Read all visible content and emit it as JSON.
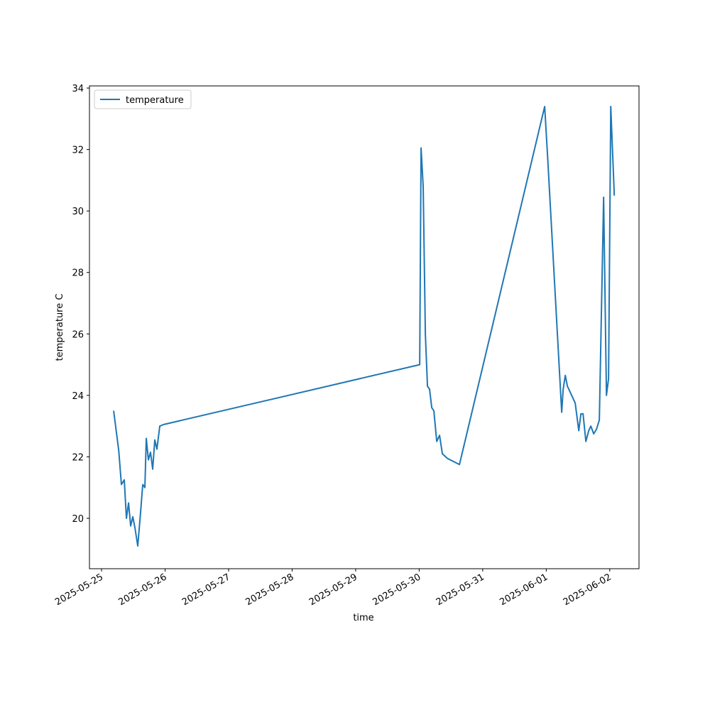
{
  "chart_data": {
    "type": "line",
    "x_label": "time",
    "y_label": "temperature C",
    "x": [
      "2025-05-25 04:34",
      "2025-05-25 06:30",
      "2025-05-25 07:30",
      "2025-05-25 08:35",
      "2025-05-25 09:24",
      "2025-05-25 10:12",
      "2025-05-25 11:00",
      "2025-05-25 11:48",
      "2025-05-25 12:36",
      "2025-05-25 13:41",
      "2025-05-25 14:45",
      "2025-05-25 15:34",
      "2025-05-25 16:22",
      "2025-05-25 16:54",
      "2025-05-25 17:42",
      "2025-05-25 18:30",
      "2025-05-25 19:19",
      "2025-05-25 20:07",
      "2025-05-25 20:55",
      "2025-05-25 22:00",
      "2025-05-25 23:21",
      "2025-05-30 00:12",
      "2025-05-30 00:43",
      "2025-05-30 01:31",
      "2025-05-30 02:20",
      "2025-05-30 03:08",
      "2025-05-30 03:56",
      "2025-05-30 04:45",
      "2025-05-30 05:33",
      "2025-05-30 06:38",
      "2025-05-30 07:42",
      "2025-05-30 08:46",
      "2025-05-30 10:39",
      "2025-05-30 15:13",
      "2025-05-31 23:25",
      "2025-06-01 00:30",
      "2025-06-01 05:51",
      "2025-06-01 06:24",
      "2025-06-01 07:12",
      "2025-06-01 08:00",
      "2025-06-01 10:57",
      "2025-06-01 12:18",
      "2025-06-01 13:06",
      "2025-06-01 13:55",
      "2025-06-01 14:59",
      "2025-06-01 16:03",
      "2025-06-01 16:51",
      "2025-06-01 17:56",
      "2025-06-01 19:00",
      "2025-06-01 20:04",
      "2025-06-01 21:41",
      "2025-06-01 22:45",
      "2025-06-01 23:33",
      "2025-06-02 00:23",
      "2025-06-02 01:43"
    ],
    "series": [
      {
        "name": "temperature",
        "color": "#1f77b4",
        "values": [
          23.5,
          22.2,
          21.1,
          21.25,
          20.0,
          20.5,
          19.75,
          20.05,
          19.7,
          19.1,
          20.2,
          21.1,
          21.0,
          22.6,
          21.9,
          22.15,
          21.6,
          22.55,
          22.25,
          23.0,
          23.05,
          25.0,
          32.05,
          30.8,
          26.0,
          24.3,
          24.2,
          23.6,
          23.5,
          22.5,
          22.7,
          22.1,
          21.95,
          21.75,
          33.4,
          31.8,
          23.45,
          24.2,
          24.65,
          24.3,
          23.75,
          22.85,
          23.4,
          23.4,
          22.5,
          22.85,
          23.0,
          22.75,
          22.9,
          23.2,
          30.45,
          24.0,
          24.55,
          33.4,
          30.5
        ]
      }
    ],
    "xlim": [
      "2025-05-24 19:26",
      "2025-06-02 11:03"
    ],
    "xticks": [
      "2025-05-25",
      "2025-05-26",
      "2025-05-27",
      "2025-05-28",
      "2025-05-29",
      "2025-05-30",
      "2025-05-31",
      "2025-06-01",
      "2025-06-02"
    ],
    "ylim": [
      18.36,
      34.07
    ],
    "yticks": [
      20,
      22,
      24,
      26,
      28,
      30,
      32,
      34
    ],
    "legend": "upper left"
  }
}
